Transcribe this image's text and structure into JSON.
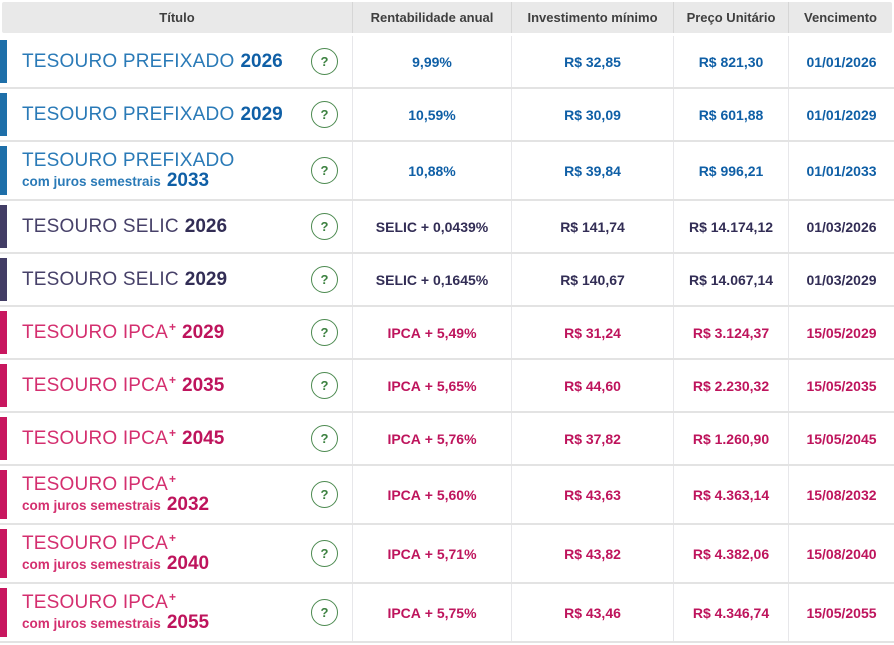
{
  "table": {
    "headers": [
      "Título",
      "Rentabilidade anual",
      "Investimento mínimo",
      "Preço Unitário",
      "Vencimento"
    ],
    "rows": [
      {
        "group": "prefixado",
        "name": "TESOURO PREFIXADO",
        "sup": "",
        "subtitle": "",
        "year": "2026",
        "rate_strong": "9,99%",
        "rate_rest": "",
        "min_investment": "R$ 32,85",
        "unit_price": "R$ 821,30",
        "maturity": "01/01/2026"
      },
      {
        "group": "prefixado",
        "name": "TESOURO PREFIXADO",
        "sup": "",
        "subtitle": "",
        "year": "2029",
        "rate_strong": "10,59%",
        "rate_rest": "",
        "min_investment": "R$ 30,09",
        "unit_price": "R$ 601,88",
        "maturity": "01/01/2029"
      },
      {
        "group": "prefixado",
        "name": "TESOURO PREFIXADO",
        "sup": "",
        "subtitle": "com juros semestrais",
        "year": "2033",
        "rate_strong": "10,88%",
        "rate_rest": "",
        "min_investment": "R$ 39,84",
        "unit_price": "R$ 996,21",
        "maturity": "01/01/2033"
      },
      {
        "group": "selic",
        "name": "TESOURO SELIC",
        "sup": "",
        "subtitle": "",
        "year": "2026",
        "rate_strong": "SELIC",
        "rate_rest": " + 0,0439%",
        "min_investment": "R$ 141,74",
        "unit_price": "R$ 14.174,12",
        "maturity": "01/03/2026"
      },
      {
        "group": "selic",
        "name": "TESOURO SELIC",
        "sup": "",
        "subtitle": "",
        "year": "2029",
        "rate_strong": "SELIC",
        "rate_rest": " + 0,1645%",
        "min_investment": "R$ 140,67",
        "unit_price": "R$ 14.067,14",
        "maturity": "01/03/2029"
      },
      {
        "group": "ipca",
        "name": "TESOURO IPCA",
        "sup": "+",
        "subtitle": "",
        "year": "2029",
        "rate_strong": "IPCA",
        "rate_rest": " + 5,49%",
        "min_investment": "R$ 31,24",
        "unit_price": "R$ 3.124,37",
        "maturity": "15/05/2029"
      },
      {
        "group": "ipca",
        "name": "TESOURO IPCA",
        "sup": "+",
        "subtitle": "",
        "year": "2035",
        "rate_strong": "IPCA",
        "rate_rest": " + 5,65%",
        "min_investment": "R$ 44,60",
        "unit_price": "R$ 2.230,32",
        "maturity": "15/05/2035"
      },
      {
        "group": "ipca",
        "name": "TESOURO IPCA",
        "sup": "+",
        "subtitle": "",
        "year": "2045",
        "rate_strong": "IPCA",
        "rate_rest": " + 5,76%",
        "min_investment": "R$ 37,82",
        "unit_price": "R$ 1.260,90",
        "maturity": "15/05/2045"
      },
      {
        "group": "ipca",
        "name": "TESOURO IPCA",
        "sup": "+",
        "subtitle": "com juros semestrais",
        "year": "2032",
        "rate_strong": "IPCA",
        "rate_rest": " + 5,60%",
        "min_investment": "R$ 43,63",
        "unit_price": "R$ 4.363,14",
        "maturity": "15/08/2032"
      },
      {
        "group": "ipca",
        "name": "TESOURO IPCA",
        "sup": "+",
        "subtitle": "com juros semestrais",
        "year": "2040",
        "rate_strong": "IPCA",
        "rate_rest": " + 5,71%",
        "min_investment": "R$ 43,82",
        "unit_price": "R$ 4.382,06",
        "maturity": "15/08/2040"
      },
      {
        "group": "ipca",
        "name": "TESOURO IPCA",
        "sup": "+",
        "subtitle": "com juros semestrais",
        "year": "2055",
        "rate_strong": "IPCA",
        "rate_rest": " + 5,75%",
        "min_investment": "R$ 43,46",
        "unit_price": "R$ 4.346,74",
        "maturity": "15/05/2055"
      }
    ]
  },
  "help_icon": {
    "glyph": "?"
  },
  "colors": {
    "prefixado": {
      "accent": "#1e6fa9",
      "text": "#2a7ab7",
      "strong": "#0f5fa6"
    },
    "selic": {
      "accent": "#423d65",
      "text": "#474169",
      "strong": "#322d55"
    },
    "ipca": {
      "accent": "#c8175f",
      "text": "#d42f6f",
      "strong": "#be145c"
    },
    "header_bg": "#e9e9e9",
    "header_text": "#3f3f3f",
    "help_green": "#3c8140",
    "row_divider": "#e3e3e3",
    "cell_divider": "#e7e7ea"
  }
}
